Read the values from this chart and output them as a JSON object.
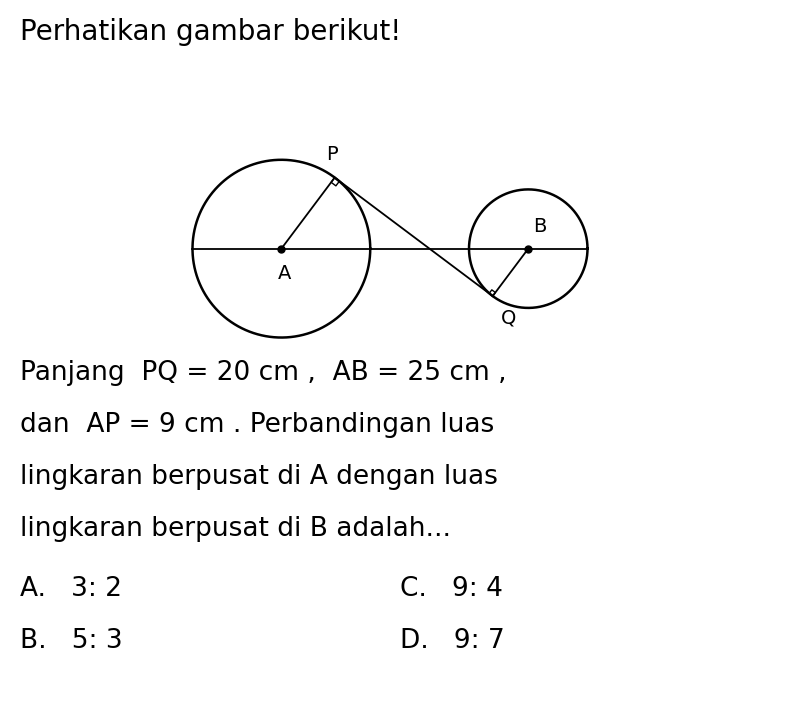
{
  "title": "Perhatikan gambar berikut!",
  "rA": 9,
  "rB": 6,
  "AB": 25,
  "PQ": 20,
  "AP": 9,
  "bg_color": "#ffffff",
  "circle_color": "#000000",
  "line_color": "#000000",
  "dot_color": "#000000",
  "text_color": "#000000",
  "title_fontsize": 20,
  "label_fontsize": 14,
  "body_fontsize": 19,
  "answer_fontsize": 19,
  "body_text_line1": "Panjang  PQ = 20 cm ,  AB = 25 cm ,",
  "body_text_line2": "dan  AP = 9 cm . Perbandingan luas",
  "body_text_line3": "lingkaran berpusat di A dengan luas",
  "body_text_line4": "lingkaran berpusat di B adalah...",
  "ans_A": "A.   3: 2",
  "ans_B": "B.   5: 3",
  "ans_C": "C.   9: 4",
  "ans_D": "D.   9: 7"
}
